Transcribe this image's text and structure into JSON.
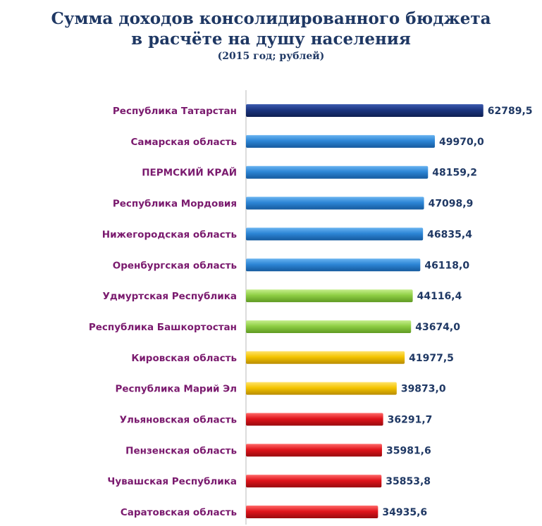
{
  "header": {
    "title_line1": "Сумма доходов консолидированного бюджета",
    "title_line2": "в расчёте на душу населения",
    "subtitle": "(2015 год; рублей)"
  },
  "colors": {
    "dark_navy": "#1b3580",
    "blue": "#2d86d6",
    "green": "#8fcf45",
    "yellow": "#f4c400",
    "red": "#e0141b",
    "label_purple": "#7a1a6e",
    "value_navy": "#1f3864",
    "highlight_red": "#c00000"
  },
  "chart_data": {
    "type": "bar",
    "orientation": "horizontal",
    "title": "Сумма доходов консолидированного бюджета в расчёте на душу населения",
    "subtitle": "(2015 год; рублей)",
    "xlim": [
      0,
      66000
    ],
    "grid": false,
    "categories": [
      "Республика Татарстан",
      "Самарская область",
      "ПЕРМСКИЙ КРАЙ",
      "Республика Мордовия",
      "Нижегородская область",
      "Оренбургская область",
      "Удмуртская Республика",
      "Республика Башкортостан",
      "Кировская область",
      "Республика Марий Эл",
      "Ульяновская область",
      "Пензенская область",
      "Чувашская Республика",
      "Саратовская область"
    ],
    "values": [
      62789.5,
      49970.0,
      48159.2,
      47098.9,
      46835.4,
      46118.0,
      44116.4,
      43674.0,
      41977.5,
      39873.0,
      36291.7,
      35981.6,
      35853.8,
      34935.6
    ],
    "value_labels": [
      "62789,5",
      "49970,0",
      "48159,2",
      "47098,9",
      "46835,4",
      "46118,0",
      "44116,4",
      "43674,0",
      "41977,5",
      "39873,0",
      "36291,7",
      "35981,6",
      "35853,8",
      "34935,6"
    ],
    "bar_groups": [
      "dark_navy",
      "blue",
      "blue",
      "blue",
      "blue",
      "blue",
      "green",
      "green",
      "yellow",
      "yellow",
      "red",
      "red",
      "red",
      "red"
    ],
    "highlighted_category": "ПЕРМСКИЙ КРАЙ"
  }
}
